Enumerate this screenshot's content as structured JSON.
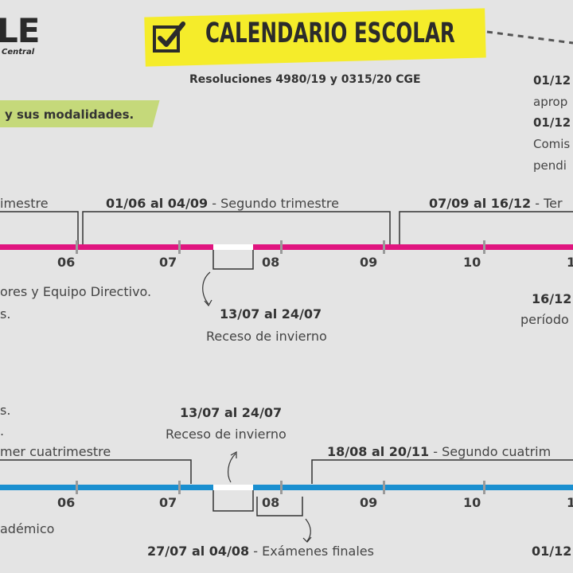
{
  "logo": {
    "text": "LE",
    "subtitle": "Central"
  },
  "header": {
    "title": "CALENDARIO ESCOLAR",
    "subtitle": "Resoluciones 4980/19 y 0315/20 CGE"
  },
  "tag": {
    "text": "y sus modalidades."
  },
  "right_notes": {
    "date1": "01/12",
    "text1": "aprop",
    "date2": "01/12",
    "text2": "Comis",
    "text3": "pendi"
  },
  "timeline1": {
    "color": "#e0157f",
    "periods": [
      {
        "dates": "",
        "label": "imestre"
      },
      {
        "dates": "01/06 al 04/09",
        "label": " - Segundo trimestre"
      },
      {
        "dates": "07/09 al 16/12",
        "label": " - Ter"
      }
    ],
    "months": [
      "06",
      "07",
      "08",
      "09",
      "10",
      "1"
    ],
    "recess": {
      "dates": "13/07 al 24/07",
      "label": "Receso de invierno"
    },
    "left_note_1": "ores y Equipo Directivo.",
    "left_note_2": "s.",
    "right_date": "16/12",
    "right_text": "período"
  },
  "timeline2": {
    "color": "#1a8fd0",
    "periods": [
      {
        "dates": "",
        "label": "mer cuatrimestre"
      },
      {
        "dates": "18/08 al 20/11",
        "label": " - Segundo cuatrim"
      }
    ],
    "months": [
      "06",
      "07",
      "08",
      "09",
      "10",
      "1"
    ],
    "recess": {
      "dates": "13/07 al 24/07",
      "label": "Receso de invierno"
    },
    "exams": {
      "dates": "27/07 al 04/08",
      "label": " - Exámenes finales"
    },
    "left_note_1": "s.",
    "left_note_2": ".",
    "left_note_3": "adémico",
    "right_date": "01/12"
  }
}
